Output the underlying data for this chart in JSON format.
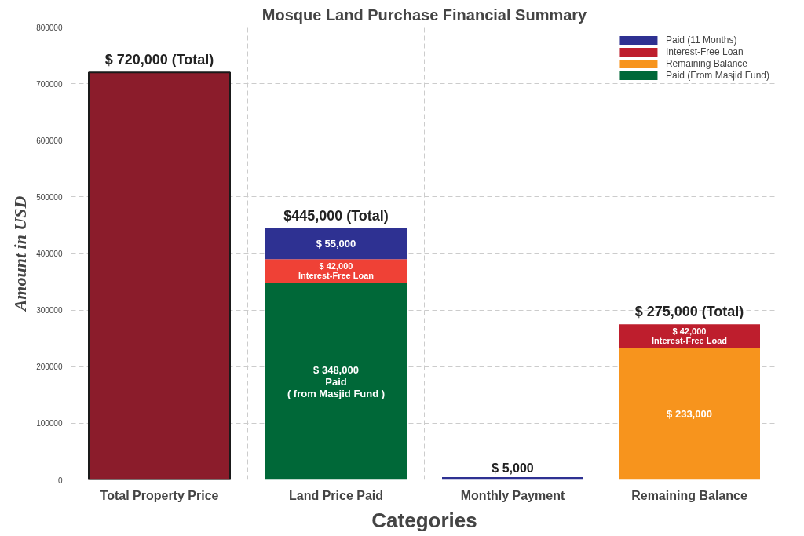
{
  "chart_data": {
    "type": "bar",
    "stacked": true,
    "title": "Mosque Land Purchase Financial Summary",
    "xlabel": "Categories",
    "ylabel": "Amount in USD",
    "categories": [
      "Total Property Price",
      "Land Price Paid",
      "Monthly Payment",
      "Remaining Balance"
    ],
    "series": [
      {
        "color": "#8b1c2b",
        "values": [
          720000,
          null,
          null,
          null
        ]
      },
      {
        "name": "Paid (From Masjid Fund)",
        "color": "#006838",
        "values": [
          null,
          348000,
          null,
          null
        ],
        "value_labels": [
          null,
          "$ 348,000\nPaid\n( from Masjid Fund )",
          null,
          null
        ]
      },
      {
        "name": "Remaining Balance",
        "color": "#f7941d",
        "values": [
          null,
          null,
          null,
          233000
        ],
        "value_labels": [
          null,
          null,
          null,
          "$ 233,000"
        ]
      },
      {
        "name": "Interest-Free Loan",
        "color": "#be1e2d",
        "colors": [
          null,
          "#ef4136",
          null,
          null
        ],
        "values": [
          null,
          42000,
          null,
          42000
        ],
        "value_labels": [
          null,
          "$ 42,000\nInterest-Free Loan",
          null,
          "$ 42,000\nInterest-Free Load"
        ]
      },
      {
        "name": "Paid (11 Months)",
        "color": "#2e3192",
        "values": [
          null,
          55000,
          5000,
          null
        ],
        "value_labels": [
          null,
          "$ 55,000",
          "$ 5,000",
          null
        ]
      }
    ],
    "totals": [
      "$ 720,000 (Total)",
      "$445,000 (Total)",
      null,
      "$ 275,000 (Total)"
    ],
    "ylim": [
      0,
      800000
    ],
    "yticks": [
      0,
      100000,
      200000,
      300000,
      400000,
      500000,
      600000,
      700000,
      800000
    ],
    "grid": true,
    "legend": "top right"
  }
}
